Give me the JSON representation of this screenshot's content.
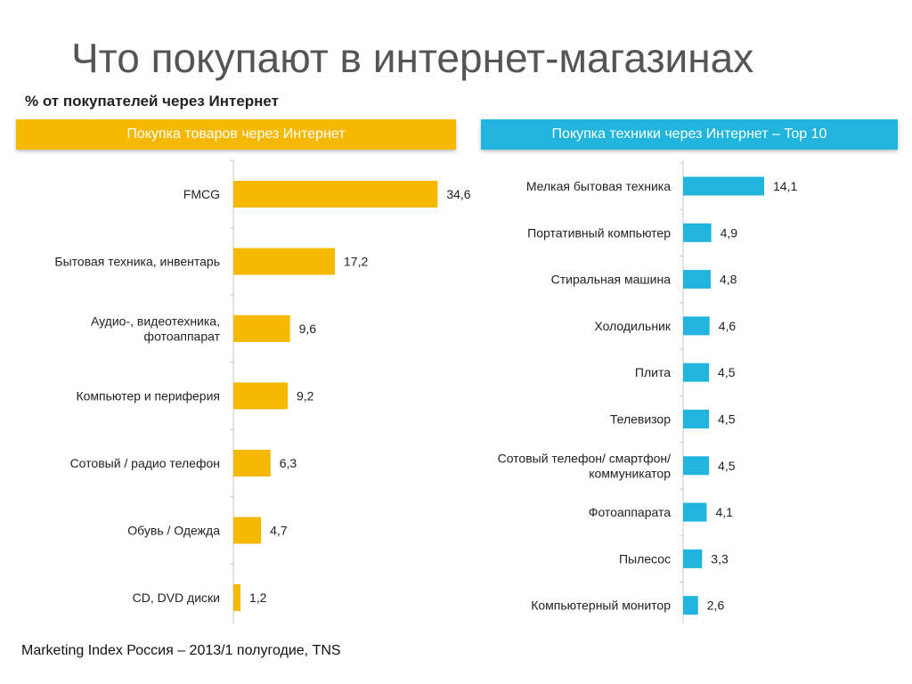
{
  "title": "Что покупают в интернет-магазинах",
  "subtitle": "% от покупателей через Интернет",
  "source": "Marketing Index Россия – 2013/1 полугодие, TNS",
  "colors": {
    "left_bar": "#f7b900",
    "right_bar": "#21b5de",
    "axis": "#c8c8c8"
  },
  "chart_data": [
    {
      "type": "bar",
      "orientation": "horizontal",
      "title": "Покупка товаров через Интернет",
      "categories": [
        "FMCG",
        "Бытовая техника, инвентарь",
        "Аудио-,  видеотехника,\nфотоаппарат",
        "Компьютер и периферия",
        "Сотовый / радио телефон",
        "Обувь / Одежда",
        "CD,  DVD диски"
      ],
      "values": [
        34.6,
        17.2,
        9.6,
        9.2,
        6.3,
        4.7,
        1.2
      ],
      "value_labels": [
        "34,6",
        "17,2",
        "9,6",
        "9,2",
        "6,3",
        "4,7",
        "1,2"
      ],
      "xlim": [
        0,
        35
      ]
    },
    {
      "type": "bar",
      "orientation": "horizontal",
      "title": "Покупка техники через Интернет – Top 10",
      "categories": [
        "Мелкая бытовая техника",
        "Портативный компьютер",
        "Стиральная машина",
        "Холодильник",
        "Плита",
        "Телевизор",
        "Сотовый телефон/ смартфон/\nкоммуникатор",
        "Фотоаппарата",
        "Пылесос",
        "Компьютерный монитор"
      ],
      "values": [
        14.1,
        4.9,
        4.8,
        4.6,
        4.5,
        4.5,
        4.5,
        4.1,
        3.3,
        2.6
      ],
      "value_labels": [
        "14,1",
        "4,9",
        "4,8",
        "4,6",
        "4,5",
        "4,5",
        "4,5",
        "4,1",
        "3,3",
        "2,6"
      ],
      "xlim": [
        0,
        14.1
      ]
    }
  ]
}
